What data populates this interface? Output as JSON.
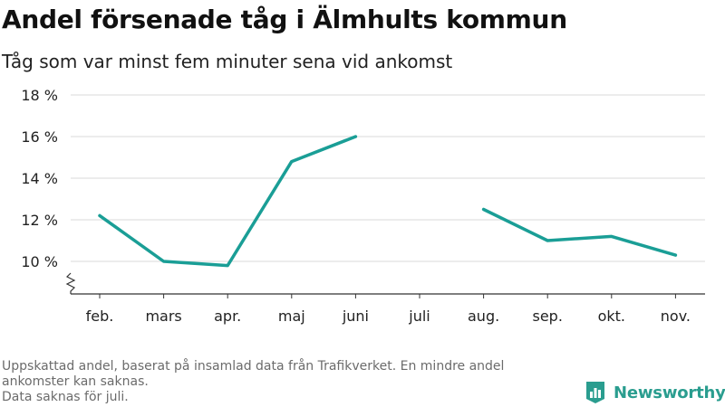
{
  "header": {
    "title": "Andel försenade tåg i Älmhults kommun",
    "subtitle": "Tåg som var minst fem minuter sena vid ankomst"
  },
  "footnote": {
    "line1": "Uppskattad andel, baserat på insamlad data från Trafikverket. En mindre andel",
    "line2": "ankomster kan saknas.",
    "line3": "Data saknas för juli."
  },
  "brand": {
    "name": "Newsworthy",
    "logo_icon": "bar-chart-flag-icon",
    "color": "#2a9d8f"
  },
  "chart_data": {
    "type": "line",
    "categories": [
      "feb.",
      "mars",
      "apr.",
      "maj",
      "juni",
      "juli",
      "aug.",
      "sep.",
      "okt.",
      "nov."
    ],
    "series": [
      {
        "name": "",
        "color": "#1a9e96",
        "values": [
          12.2,
          10.0,
          9.8,
          14.8,
          16.0,
          null,
          12.5,
          11.0,
          11.2,
          10.3
        ]
      }
    ],
    "yticks": [
      "10 %",
      "12 %",
      "14 %",
      "16 %",
      "18 %"
    ],
    "ytick_values": [
      10,
      12,
      14,
      16,
      18
    ],
    "ylim": [
      8.5,
      18
    ],
    "axis_break": true,
    "grid": true,
    "xlabel": "",
    "ylabel": ""
  }
}
